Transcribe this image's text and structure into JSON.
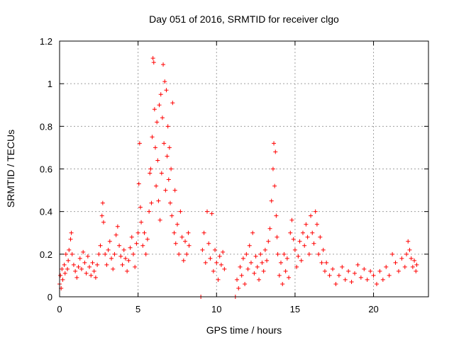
{
  "chart_data": {
    "type": "scatter",
    "title": "Day 051 of 2016, SRMTID for receiver clgo",
    "xlabel": "GPS time / hours",
    "ylabel": "SRMTID / TECUs",
    "xlim": [
      0,
      23.5
    ],
    "ylim": [
      0,
      1.2
    ],
    "grid": true,
    "marker": "plus",
    "color": "#ff0000",
    "x_ticks": [
      0,
      5,
      10,
      15,
      20
    ],
    "x_tick_labels": [
      "0",
      "5",
      "10",
      "15",
      "20"
    ],
    "y_ticks": [
      0,
      0.2,
      0.4,
      0.6,
      0.8,
      1,
      1.2
    ],
    "y_tick_labels": [
      "0",
      "0.2",
      "0.4",
      "0.6",
      "0.8",
      "1",
      "1.2"
    ],
    "series": [
      {
        "name": "SRMTID",
        "points": [
          [
            0.0,
            0.06
          ],
          [
            0.05,
            0.1
          ],
          [
            0.1,
            0.04
          ],
          [
            0.15,
            0.13
          ],
          [
            0.2,
            0.08
          ],
          [
            0.3,
            0.15
          ],
          [
            0.35,
            0.11
          ],
          [
            0.4,
            0.2
          ],
          [
            0.5,
            0.13
          ],
          [
            0.55,
            0.17
          ],
          [
            0.6,
            0.22
          ],
          [
            0.7,
            0.27
          ],
          [
            0.75,
            0.3
          ],
          [
            0.8,
            0.2
          ],
          [
            0.9,
            0.15
          ],
          [
            1.0,
            0.12
          ],
          [
            1.1,
            0.09
          ],
          [
            1.2,
            0.14
          ],
          [
            1.3,
            0.18
          ],
          [
            1.4,
            0.13
          ],
          [
            1.5,
            0.21
          ],
          [
            1.6,
            0.16
          ],
          [
            1.7,
            0.11
          ],
          [
            1.8,
            0.19
          ],
          [
            1.9,
            0.14
          ],
          [
            2.0,
            0.1
          ],
          [
            2.1,
            0.16
          ],
          [
            2.2,
            0.12
          ],
          [
            2.3,
            0.09
          ],
          [
            2.4,
            0.15
          ],
          [
            2.5,
            0.2
          ],
          [
            2.6,
            0.24
          ],
          [
            2.7,
            0.38
          ],
          [
            2.75,
            0.44
          ],
          [
            2.8,
            0.35
          ],
          [
            2.9,
            0.2
          ],
          [
            3.0,
            0.15
          ],
          [
            3.1,
            0.22
          ],
          [
            3.2,
            0.26
          ],
          [
            3.3,
            0.18
          ],
          [
            3.4,
            0.13
          ],
          [
            3.5,
            0.2
          ],
          [
            3.6,
            0.29
          ],
          [
            3.7,
            0.33
          ],
          [
            3.8,
            0.24
          ],
          [
            3.9,
            0.19
          ],
          [
            4.0,
            0.15
          ],
          [
            4.1,
            0.22
          ],
          [
            4.2,
            0.18
          ],
          [
            4.3,
            0.12
          ],
          [
            4.4,
            0.17
          ],
          [
            4.5,
            0.23
          ],
          [
            4.6,
            0.28
          ],
          [
            4.7,
            0.2
          ],
          [
            4.8,
            0.14
          ],
          [
            4.9,
            0.25
          ],
          [
            5.0,
            0.3
          ],
          [
            5.05,
            0.53
          ],
          [
            5.1,
            0.72
          ],
          [
            5.15,
            0.42
          ],
          [
            5.2,
            0.35
          ],
          [
            5.3,
            0.24
          ],
          [
            5.4,
            0.3
          ],
          [
            5.5,
            0.2
          ],
          [
            5.6,
            0.27
          ],
          [
            5.7,
            0.4
          ],
          [
            5.75,
            0.58
          ],
          [
            5.8,
            0.6
          ],
          [
            5.85,
            0.44
          ],
          [
            5.9,
            0.75
          ],
          [
            5.95,
            1.12
          ],
          [
            6.0,
            1.1
          ],
          [
            6.05,
            0.88
          ],
          [
            6.1,
            0.7
          ],
          [
            6.15,
            0.52
          ],
          [
            6.2,
            0.82
          ],
          [
            6.25,
            0.64
          ],
          [
            6.3,
            0.45
          ],
          [
            6.35,
            0.9
          ],
          [
            6.4,
            0.36
          ],
          [
            6.45,
            0.95
          ],
          [
            6.5,
            0.58
          ],
          [
            6.55,
            0.84
          ],
          [
            6.6,
            1.09
          ],
          [
            6.65,
            0.72
          ],
          [
            6.7,
            1.01
          ],
          [
            6.75,
            0.5
          ],
          [
            6.8,
            0.97
          ],
          [
            6.85,
            0.66
          ],
          [
            6.9,
            0.8
          ],
          [
            6.95,
            0.55
          ],
          [
            7.0,
            0.7
          ],
          [
            7.05,
            0.44
          ],
          [
            7.1,
            0.6
          ],
          [
            7.15,
            0.38
          ],
          [
            7.2,
            0.91
          ],
          [
            7.3,
            0.3
          ],
          [
            7.35,
            0.5
          ],
          [
            7.4,
            0.25
          ],
          [
            7.5,
            0.34
          ],
          [
            7.6,
            0.2
          ],
          [
            7.7,
            0.4
          ],
          [
            7.8,
            0.28
          ],
          [
            7.9,
            0.17
          ],
          [
            8.0,
            0.26
          ],
          [
            8.1,
            0.2
          ],
          [
            8.2,
            0.3
          ],
          [
            8.25,
            0.24
          ],
          [
            9.0,
            0.0
          ],
          [
            9.1,
            0.22
          ],
          [
            9.2,
            0.3
          ],
          [
            9.3,
            0.16
          ],
          [
            9.4,
            0.4
          ],
          [
            9.5,
            0.25
          ],
          [
            9.6,
            0.18
          ],
          [
            9.7,
            0.39
          ],
          [
            9.8,
            0.12
          ],
          [
            9.9,
            0.22
          ],
          [
            10.0,
            0.16
          ],
          [
            10.1,
            0.08
          ],
          [
            10.2,
            0.19
          ],
          [
            10.3,
            0.15
          ],
          [
            10.4,
            0.21
          ],
          [
            10.5,
            0.13
          ],
          [
            11.2,
            0.0
          ],
          [
            11.3,
            0.08
          ],
          [
            11.4,
            0.04
          ],
          [
            11.5,
            0.14
          ],
          [
            11.6,
            0.1
          ],
          [
            11.7,
            0.18
          ],
          [
            11.8,
            0.06
          ],
          [
            11.9,
            0.2
          ],
          [
            12.0,
            0.13
          ],
          [
            12.1,
            0.24
          ],
          [
            12.2,
            0.16
          ],
          [
            12.3,
            0.3
          ],
          [
            12.4,
            0.11
          ],
          [
            12.5,
            0.19
          ],
          [
            12.6,
            0.14
          ],
          [
            12.7,
            0.08
          ],
          [
            12.8,
            0.2
          ],
          [
            12.9,
            0.16
          ],
          [
            13.0,
            0.12
          ],
          [
            13.1,
            0.22
          ],
          [
            13.2,
            0.17
          ],
          [
            13.3,
            0.26
          ],
          [
            13.4,
            0.32
          ],
          [
            13.5,
            0.45
          ],
          [
            13.6,
            0.6
          ],
          [
            13.65,
            0.72
          ],
          [
            13.7,
            0.52
          ],
          [
            13.75,
            0.68
          ],
          [
            13.8,
            0.38
          ],
          [
            13.85,
            0.28
          ],
          [
            13.9,
            0.2
          ],
          [
            14.0,
            0.1
          ],
          [
            14.1,
            0.16
          ],
          [
            14.2,
            0.06
          ],
          [
            14.3,
            0.2
          ],
          [
            14.4,
            0.12
          ],
          [
            14.5,
            0.18
          ],
          [
            14.6,
            0.09
          ],
          [
            14.7,
            0.3
          ],
          [
            14.8,
            0.36
          ],
          [
            14.9,
            0.27
          ],
          [
            15.0,
            0.22
          ],
          [
            15.1,
            0.14
          ],
          [
            15.2,
            0.19
          ],
          [
            15.3,
            0.26
          ],
          [
            15.4,
            0.17
          ],
          [
            15.5,
            0.3
          ],
          [
            15.6,
            0.24
          ],
          [
            15.7,
            0.34
          ],
          [
            15.8,
            0.28
          ],
          [
            15.9,
            0.2
          ],
          [
            16.0,
            0.38
          ],
          [
            16.1,
            0.3
          ],
          [
            16.2,
            0.25
          ],
          [
            16.3,
            0.4
          ],
          [
            16.4,
            0.34
          ],
          [
            16.5,
            0.2
          ],
          [
            16.6,
            0.28
          ],
          [
            16.7,
            0.16
          ],
          [
            16.8,
            0.22
          ],
          [
            16.9,
            0.12
          ],
          [
            17.0,
            0.16
          ],
          [
            17.2,
            0.1
          ],
          [
            17.4,
            0.13
          ],
          [
            17.6,
            0.06
          ],
          [
            17.8,
            0.1
          ],
          [
            18.0,
            0.14
          ],
          [
            18.2,
            0.08
          ],
          [
            18.4,
            0.12
          ],
          [
            18.6,
            0.07
          ],
          [
            18.8,
            0.11
          ],
          [
            19.0,
            0.15
          ],
          [
            19.2,
            0.09
          ],
          [
            19.4,
            0.13
          ],
          [
            19.6,
            0.08
          ],
          [
            19.8,
            0.12
          ],
          [
            20.0,
            0.1
          ],
          [
            20.2,
            0.06
          ],
          [
            20.4,
            0.12
          ],
          [
            20.6,
            0.08
          ],
          [
            20.8,
            0.14
          ],
          [
            21.0,
            0.1
          ],
          [
            21.2,
            0.2
          ],
          [
            21.4,
            0.16
          ],
          [
            21.6,
            0.12
          ],
          [
            21.8,
            0.18
          ],
          [
            22.0,
            0.14
          ],
          [
            22.1,
            0.2
          ],
          [
            22.2,
            0.26
          ],
          [
            22.3,
            0.22
          ],
          [
            22.4,
            0.18
          ],
          [
            22.5,
            0.14
          ],
          [
            22.6,
            0.17
          ],
          [
            22.7,
            0.12
          ],
          [
            22.75,
            0.15
          ]
        ]
      }
    ]
  }
}
